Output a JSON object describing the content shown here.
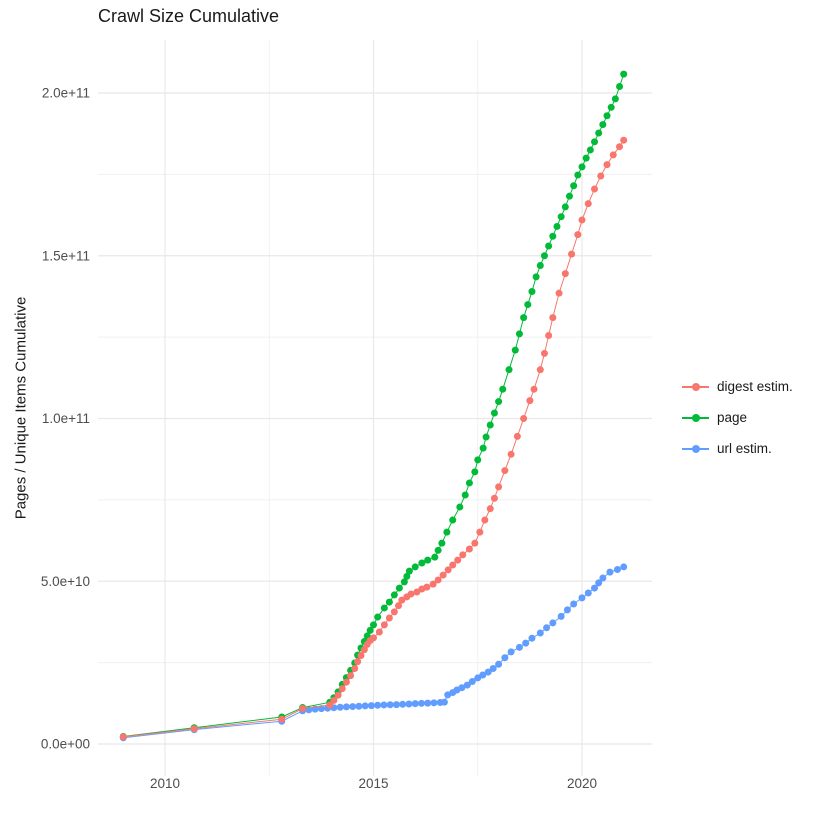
{
  "chart_data": {
    "type": "scatter",
    "title": "Crawl Size Cumulative",
    "xlabel": "",
    "ylabel": "Pages / Unique Items Cumulative",
    "legend_position": "right",
    "grid": true,
    "value_unit_multiplier": 1000000000,
    "x_range_shown": [
      2008.5,
      2021.8
    ],
    "y_range_shown": [
      0,
      216000000000
    ],
    "x_ticks": [
      {
        "value": 2010,
        "label": "2010"
      },
      {
        "value": 2015,
        "label": "2015"
      },
      {
        "value": 2020,
        "label": "2020"
      }
    ],
    "x_minor_ticks": [
      2012.5,
      2017.5
    ],
    "y_ticks": [
      {
        "value": 0,
        "label": "0.0e+00"
      },
      {
        "value": 50,
        "label": "5.0e+10"
      },
      {
        "value": 100,
        "label": "1.0e+11"
      },
      {
        "value": 150,
        "label": "1.5e+11"
      },
      {
        "value": 200,
        "label": "2.0e+11"
      }
    ],
    "y_minor_ticks": [
      25,
      75,
      125,
      175
    ],
    "series": [
      {
        "name": "digest estim.",
        "color": "#F8766D",
        "points": [
          [
            2009.0,
            2.2
          ],
          [
            2010.7,
            4.7
          ],
          [
            2012.8,
            7.6
          ],
          [
            2013.3,
            10.9
          ],
          [
            2013.95,
            12.0
          ],
          [
            2014.05,
            13.4
          ],
          [
            2014.15,
            15.0
          ],
          [
            2014.25,
            17.0
          ],
          [
            2014.35,
            19.0
          ],
          [
            2014.45,
            21.0
          ],
          [
            2014.55,
            23.2
          ],
          [
            2014.62,
            25.3
          ],
          [
            2014.7,
            27.2
          ],
          [
            2014.78,
            29.0
          ],
          [
            2014.85,
            30.6
          ],
          [
            2014.92,
            31.8
          ],
          [
            2015.0,
            32.6
          ],
          [
            2015.14,
            34.4
          ],
          [
            2015.26,
            36.6
          ],
          [
            2015.38,
            38.7
          ],
          [
            2015.5,
            40.6
          ],
          [
            2015.6,
            42.5
          ],
          [
            2015.68,
            44.2
          ],
          [
            2015.8,
            45.2
          ],
          [
            2015.9,
            46.1
          ],
          [
            2016.04,
            46.7
          ],
          [
            2016.16,
            47.6
          ],
          [
            2016.28,
            48.2
          ],
          [
            2016.43,
            49.1
          ],
          [
            2016.55,
            50.4
          ],
          [
            2016.67,
            51.9
          ],
          [
            2016.79,
            53.5
          ],
          [
            2016.9,
            55.0
          ],
          [
            2017.02,
            56.5
          ],
          [
            2017.14,
            58.1
          ],
          [
            2017.3,
            59.9
          ],
          [
            2017.43,
            61.7
          ],
          [
            2017.55,
            65.1
          ],
          [
            2017.67,
            68.8
          ],
          [
            2017.8,
            72.3
          ],
          [
            2017.9,
            75.5
          ],
          [
            2018.0,
            79.0
          ],
          [
            2018.15,
            84.0
          ],
          [
            2018.3,
            89.0
          ],
          [
            2018.45,
            94.5
          ],
          [
            2018.6,
            100.0
          ],
          [
            2018.75,
            105.5
          ],
          [
            2018.85,
            109.0
          ],
          [
            2019.0,
            115.0
          ],
          [
            2019.1,
            120.0
          ],
          [
            2019.2,
            125.5
          ],
          [
            2019.3,
            131.0
          ],
          [
            2019.45,
            138.5
          ],
          [
            2019.6,
            144.5
          ],
          [
            2019.75,
            150.5
          ],
          [
            2019.9,
            156.5
          ],
          [
            2020.0,
            161.0
          ],
          [
            2020.15,
            166.0
          ],
          [
            2020.3,
            170.5
          ],
          [
            2020.45,
            174.5
          ],
          [
            2020.6,
            178.0
          ],
          [
            2020.75,
            181.0
          ],
          [
            2020.9,
            183.5
          ],
          [
            2021.0,
            185.5
          ]
        ]
      },
      {
        "name": "page",
        "color": "#00BA38",
        "points": [
          [
            2009.0,
            2.3
          ],
          [
            2010.7,
            5.0
          ],
          [
            2012.8,
            8.3
          ],
          [
            2013.3,
            11.2
          ],
          [
            2013.95,
            12.8
          ],
          [
            2014.05,
            14.2
          ],
          [
            2014.15,
            16.0
          ],
          [
            2014.25,
            18.3
          ],
          [
            2014.35,
            20.4
          ],
          [
            2014.45,
            22.6
          ],
          [
            2014.55,
            24.9
          ],
          [
            2014.62,
            27.3
          ],
          [
            2014.7,
            29.5
          ],
          [
            2014.78,
            31.5
          ],
          [
            2014.85,
            33.2
          ],
          [
            2014.92,
            34.9
          ],
          [
            2015.0,
            36.6
          ],
          [
            2015.1,
            39.0
          ],
          [
            2015.26,
            41.8
          ],
          [
            2015.38,
            43.6
          ],
          [
            2015.5,
            45.8
          ],
          [
            2015.62,
            47.9
          ],
          [
            2015.74,
            49.8
          ],
          [
            2015.8,
            51.5
          ],
          [
            2015.86,
            53.1
          ],
          [
            2016.0,
            54.4
          ],
          [
            2016.16,
            55.6
          ],
          [
            2016.3,
            56.5
          ],
          [
            2016.47,
            57.4
          ],
          [
            2016.55,
            59.5
          ],
          [
            2016.64,
            61.7
          ],
          [
            2016.76,
            65.1
          ],
          [
            2016.9,
            68.8
          ],
          [
            2017.07,
            72.8
          ],
          [
            2017.2,
            76.5
          ],
          [
            2017.3,
            80.2
          ],
          [
            2017.43,
            83.6
          ],
          [
            2017.5,
            87.3
          ],
          [
            2017.63,
            90.9
          ],
          [
            2017.7,
            94.3
          ],
          [
            2017.8,
            98.0
          ],
          [
            2017.9,
            101.7
          ],
          [
            2018.0,
            105.2
          ],
          [
            2018.1,
            109.0
          ],
          [
            2018.25,
            115.0
          ],
          [
            2018.4,
            121.0
          ],
          [
            2018.5,
            126.0
          ],
          [
            2018.6,
            131.0
          ],
          [
            2018.7,
            135.0
          ],
          [
            2018.8,
            139.0
          ],
          [
            2018.9,
            143.5
          ],
          [
            2019.0,
            147.0
          ],
          [
            2019.1,
            150.0
          ],
          [
            2019.2,
            153.0
          ],
          [
            2019.3,
            156.0
          ],
          [
            2019.4,
            159.0
          ],
          [
            2019.5,
            162.0
          ],
          [
            2019.6,
            165.0
          ],
          [
            2019.7,
            168.3
          ],
          [
            2019.8,
            171.5
          ],
          [
            2019.9,
            174.8
          ],
          [
            2020.0,
            177.3
          ],
          [
            2020.1,
            180.0
          ],
          [
            2020.2,
            182.5
          ],
          [
            2020.3,
            185.0
          ],
          [
            2020.4,
            187.7
          ],
          [
            2020.5,
            190.3
          ],
          [
            2020.6,
            193.0
          ],
          [
            2020.7,
            195.6
          ],
          [
            2020.8,
            198.2
          ],
          [
            2020.9,
            202.0
          ],
          [
            2021.0,
            205.8
          ]
        ]
      },
      {
        "name": "url estim.",
        "color": "#619CFF",
        "points": [
          [
            2009.0,
            1.9
          ],
          [
            2010.7,
            4.4
          ],
          [
            2012.8,
            7.0
          ],
          [
            2013.3,
            10.2
          ],
          [
            2013.45,
            10.5
          ],
          [
            2013.6,
            10.7
          ],
          [
            2013.75,
            10.85
          ],
          [
            2013.9,
            11.0
          ],
          [
            2014.05,
            11.15
          ],
          [
            2014.2,
            11.3
          ],
          [
            2014.35,
            11.4
          ],
          [
            2014.5,
            11.5
          ],
          [
            2014.65,
            11.6
          ],
          [
            2014.8,
            11.7
          ],
          [
            2014.95,
            11.8
          ],
          [
            2015.1,
            11.9
          ],
          [
            2015.25,
            12.0
          ],
          [
            2015.4,
            12.05
          ],
          [
            2015.55,
            12.1
          ],
          [
            2015.7,
            12.2
          ],
          [
            2015.85,
            12.3
          ],
          [
            2016.0,
            12.4
          ],
          [
            2016.15,
            12.5
          ],
          [
            2016.3,
            12.55
          ],
          [
            2016.45,
            12.65
          ],
          [
            2016.6,
            12.75
          ],
          [
            2016.7,
            12.85
          ],
          [
            2016.78,
            15.1
          ],
          [
            2016.9,
            15.8
          ],
          [
            2017.0,
            16.6
          ],
          [
            2017.12,
            17.3
          ],
          [
            2017.25,
            18.1
          ],
          [
            2017.37,
            19.2
          ],
          [
            2017.5,
            20.3
          ],
          [
            2017.62,
            21.2
          ],
          [
            2017.75,
            22.1
          ],
          [
            2017.87,
            23.2
          ],
          [
            2018.0,
            24.5
          ],
          [
            2018.15,
            26.5
          ],
          [
            2018.3,
            28.3
          ],
          [
            2018.5,
            29.7
          ],
          [
            2018.65,
            31.0
          ],
          [
            2018.8,
            32.5
          ],
          [
            2019.0,
            34.1
          ],
          [
            2019.15,
            35.7
          ],
          [
            2019.3,
            37.2
          ],
          [
            2019.5,
            39.2
          ],
          [
            2019.65,
            41.2
          ],
          [
            2019.8,
            43.0
          ],
          [
            2020.0,
            44.9
          ],
          [
            2020.15,
            46.4
          ],
          [
            2020.3,
            47.9
          ],
          [
            2020.4,
            49.5
          ],
          [
            2020.5,
            51.0
          ],
          [
            2020.67,
            52.8
          ],
          [
            2020.85,
            53.6
          ],
          [
            2021.0,
            54.4
          ]
        ]
      }
    ]
  }
}
